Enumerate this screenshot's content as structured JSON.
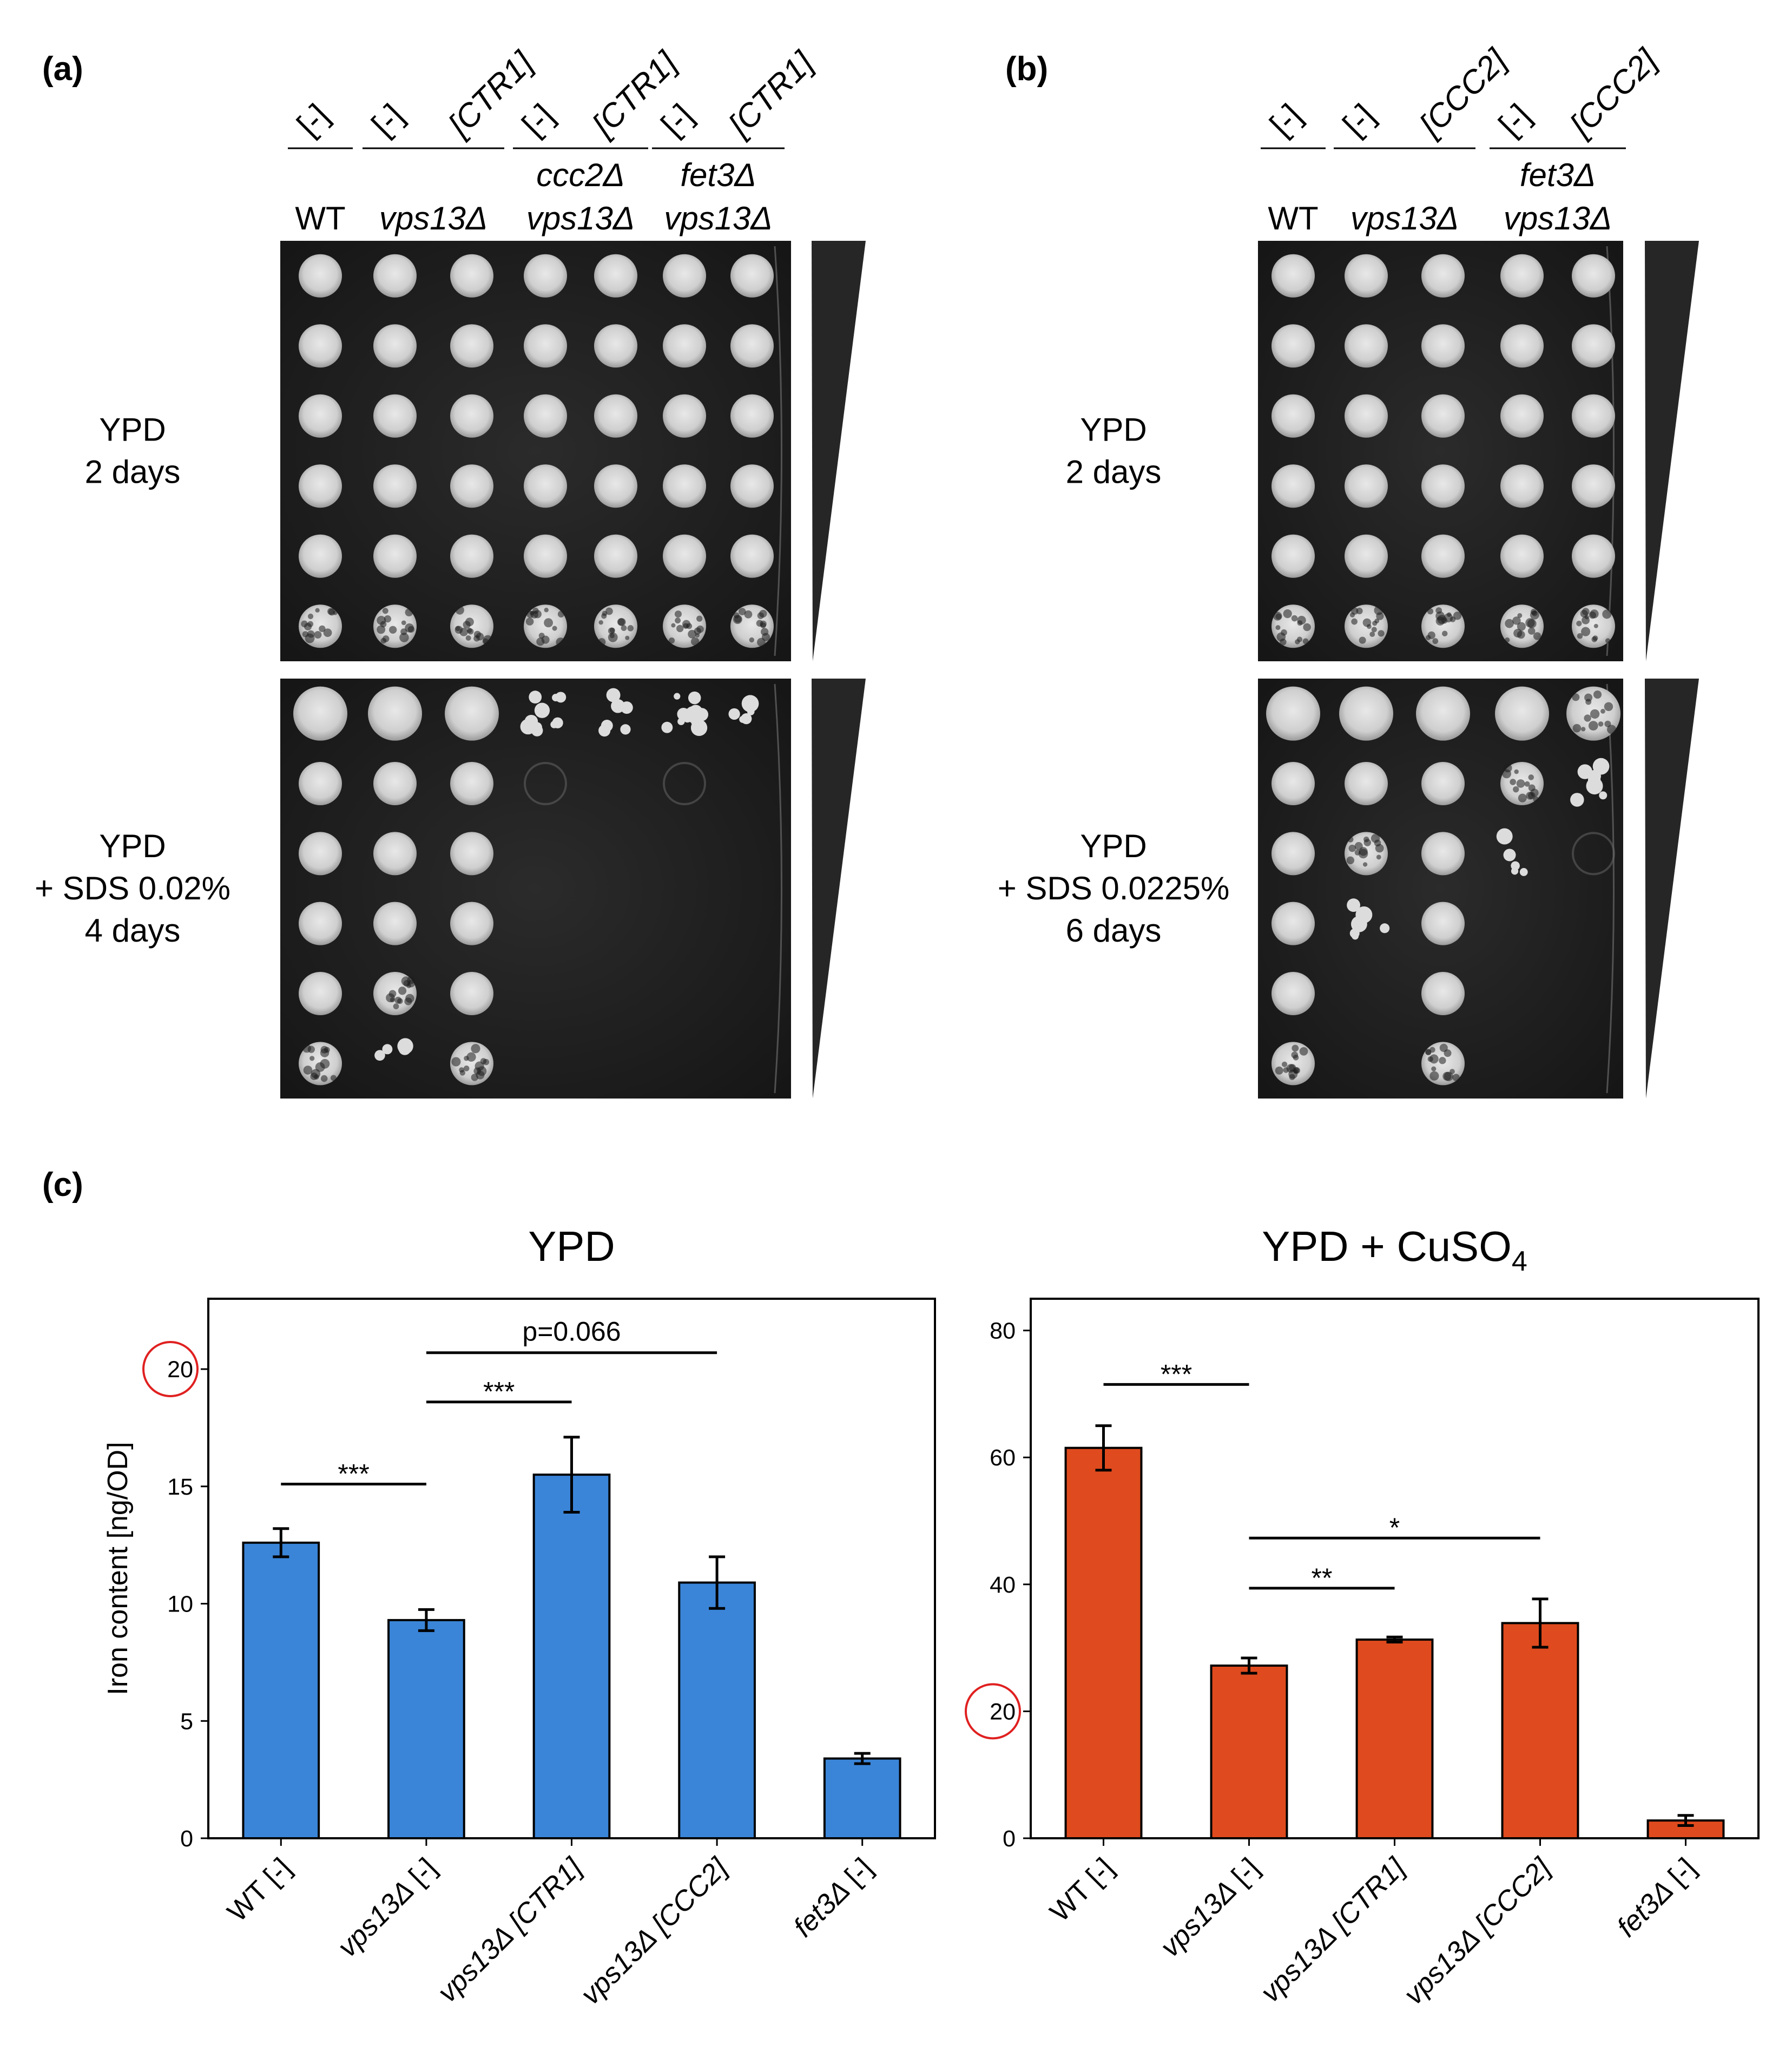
{
  "panel_a": {
    "label": "(a)",
    "column_labels": [
      "[-]",
      "[-]",
      "[CTR1]",
      "[-]",
      "[CTR1]",
      "[-]",
      "[CTR1]"
    ],
    "strains": [
      {
        "line1": "",
        "line2": "WT",
        "italic": false
      },
      {
        "line1": "",
        "line2": "vps13Δ",
        "italic": true
      },
      {
        "line1": "ccc2Δ",
        "line2": "vps13Δ",
        "italic": true
      },
      {
        "line1": "fet3Δ",
        "line2": "vps13Δ",
        "italic": true
      }
    ],
    "conditions": [
      {
        "lines": [
          "YPD",
          "2 days"
        ]
      },
      {
        "lines": [
          "YPD",
          "+ SDS 0.02%",
          "4 days"
        ]
      }
    ]
  },
  "panel_b": {
    "label": "(b)",
    "column_labels": [
      "[-]",
      "[-]",
      "[CCC2]",
      "[-]",
      "[CCC2]"
    ],
    "strains": [
      {
        "line1": "",
        "line2": "WT",
        "italic": false
      },
      {
        "line1": "",
        "line2": "vps13Δ",
        "italic": true
      },
      {
        "line1": "fet3Δ",
        "line2": "vps13Δ",
        "italic": true
      }
    ],
    "conditions": [
      {
        "lines": [
          "YPD",
          "2 days"
        ]
      },
      {
        "lines": [
          "YPD",
          "+ SDS 0.0225%",
          "6 days"
        ]
      }
    ]
  },
  "panel_c": {
    "label": "(c)"
  },
  "colors": {
    "blue": "#3a85d8",
    "orange": "#df4b1e",
    "highlight": "#e02020"
  },
  "chart_data": [
    {
      "type": "bar",
      "title": "YPD",
      "ylabel": "Iron content [ng/OD]",
      "categories": [
        "WT [-]",
        "vps13Δ [-]",
        "vps13Δ [CTR1]",
        "vps13Δ [CCC2]",
        "fet3Δ [-]"
      ],
      "values": [
        12.6,
        9.3,
        15.5,
        10.9,
        3.4
      ],
      "errors": [
        0.6,
        0.45,
        1.6,
        1.1,
        0.22
      ],
      "ylim": [
        0,
        23
      ],
      "yticks": [
        0,
        5,
        10,
        15,
        20
      ],
      "circled_tick": 20,
      "significance": [
        {
          "from": 0,
          "to": 1,
          "y": 15.1,
          "label": "***"
        },
        {
          "from": 1,
          "to": 2,
          "y": 18.6,
          "label": "***"
        },
        {
          "from": 1,
          "to": 3,
          "y": 20.7,
          "label": "p=0.066"
        }
      ],
      "color": "#3a85d8"
    },
    {
      "type": "bar",
      "title": "YPD + CuSO",
      "title_subscript": "4",
      "ylabel": "",
      "categories": [
        "WT [-]",
        "vps13Δ [-]",
        "vps13Δ [CTR1]",
        "vps13Δ [CCC2]",
        "fet3Δ [-]"
      ],
      "values": [
        61.5,
        27.2,
        31.3,
        33.9,
        2.8
      ],
      "errors": [
        3.5,
        1.2,
        0.4,
        3.8,
        0.8
      ],
      "ylim": [
        0,
        85
      ],
      "yticks": [
        0,
        20,
        40,
        60,
        80
      ],
      "circled_tick": 20,
      "significance": [
        {
          "from": 0,
          "to": 1,
          "y": 71.5,
          "label": "***"
        },
        {
          "from": 1,
          "to": 3,
          "y": 47.3,
          "label": "*"
        },
        {
          "from": 1,
          "to": 2,
          "y": 39.4,
          "label": "**"
        }
      ],
      "color": "#df4b1e"
    }
  ]
}
